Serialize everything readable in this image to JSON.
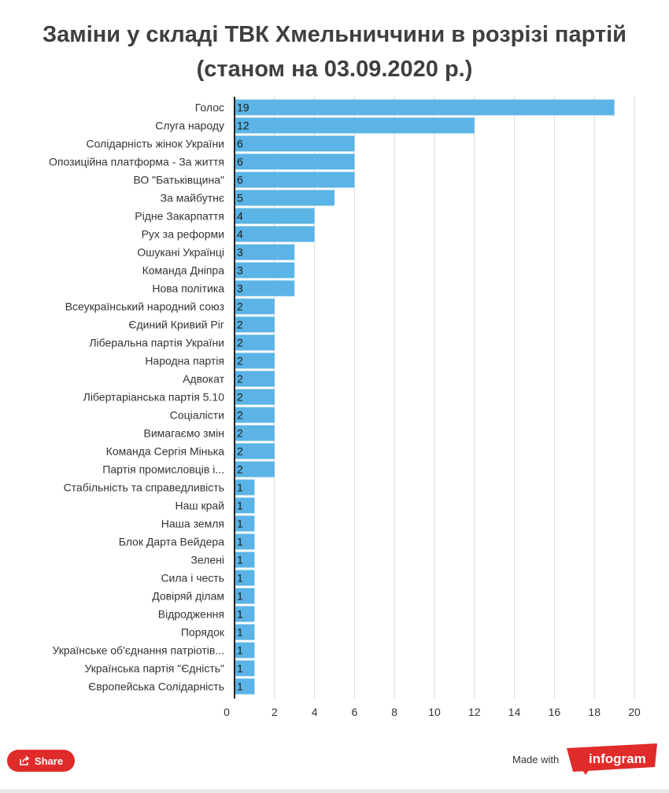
{
  "title_line1": "Заміни у складі ТВК Хмельниччини в розрізі партій",
  "title_line2": "(станом на 03.09.2020 р.)",
  "colors": {
    "bar": "#5bb4e5",
    "grid": "#d9d9d9",
    "axis": "#222222",
    "text": "#333333",
    "accent": "#e02b2b"
  },
  "footer": {
    "share_label": "Share",
    "made_with": "Made with",
    "brand": "infogram",
    "share_icon": "share-icon"
  },
  "chart_data": {
    "type": "bar",
    "orientation": "horizontal",
    "title": "Заміни у складі ТВК Хмельниччини в розрізі партій (станом на 03.09.2020 р.)",
    "categories": [
      "Голос",
      "Слуга народу",
      "Солідарність жінок України",
      "Опозиційна платформа - За життя",
      "ВО \"Батьківщина\"",
      "За майбутнє",
      "Рідне Закарпаття",
      "Рух за реформи",
      "Ошукані Українці",
      "Команда Дніпра",
      "Нова політика",
      "Всеукраїнський народний союз",
      "Єдиний Кривий Ріг",
      "Ліберальна партія України",
      "Народна партія",
      "Адвокат",
      "Лібертаріанська партія 5.10",
      "Соціалісти",
      "Вимагаємо змін",
      "Команда Сергія Мінька",
      "Партія промисловців і...",
      "Стабільність та справедливість",
      "Наш край",
      "Наша земля",
      "Блок Дарта Вейдера",
      "Зелені",
      "Сила і честь",
      "Довіряй ділам",
      "Відродження",
      "Порядок",
      "Українське об'єднання патріотів...",
      "Українська партія \"Єдність\"",
      "Європейська Солідарність"
    ],
    "values": [
      19,
      12,
      6,
      6,
      6,
      5,
      4,
      4,
      3,
      3,
      3,
      2,
      2,
      2,
      2,
      2,
      2,
      2,
      2,
      2,
      2,
      1,
      1,
      1,
      1,
      1,
      1,
      1,
      1,
      1,
      1,
      1,
      1
    ],
    "xlim": [
      0,
      20
    ],
    "xticks": [
      0,
      2,
      4,
      6,
      8,
      10,
      12,
      14,
      16,
      18,
      20
    ],
    "grid": true,
    "data_labels": true
  }
}
